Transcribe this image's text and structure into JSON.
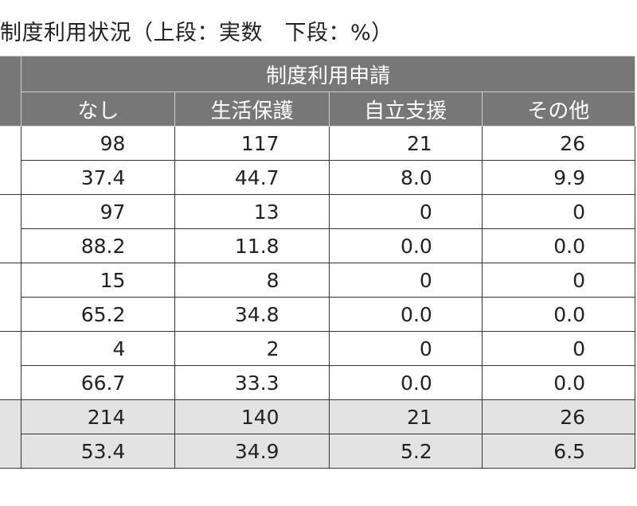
{
  "title": "制度利用状況（上段：実数　下段：%）",
  "table": {
    "group_header": "制度利用申請",
    "columns": [
      "なし",
      "生活保護",
      "自立支援",
      "その他"
    ],
    "rows": [
      {
        "count": [
          "98",
          "117",
          "21",
          "26"
        ],
        "percent": [
          "37.4",
          "44.7",
          "8.0",
          "9.9"
        ]
      },
      {
        "count": [
          "97",
          "13",
          "0",
          "0"
        ],
        "percent": [
          "88.2",
          "11.8",
          "0.0",
          "0.0"
        ]
      },
      {
        "count": [
          "15",
          "8",
          "0",
          "0"
        ],
        "percent": [
          "65.2",
          "34.8",
          "0.0",
          "0.0"
        ]
      },
      {
        "count": [
          "4",
          "2",
          "0",
          "0"
        ],
        "percent": [
          "66.7",
          "33.3",
          "0.0",
          "0.0"
        ]
      },
      {
        "count": [
          "214",
          "140",
          "21",
          "26"
        ],
        "percent": [
          "53.4",
          "34.9",
          "5.2",
          "6.5"
        ]
      }
    ]
  }
}
